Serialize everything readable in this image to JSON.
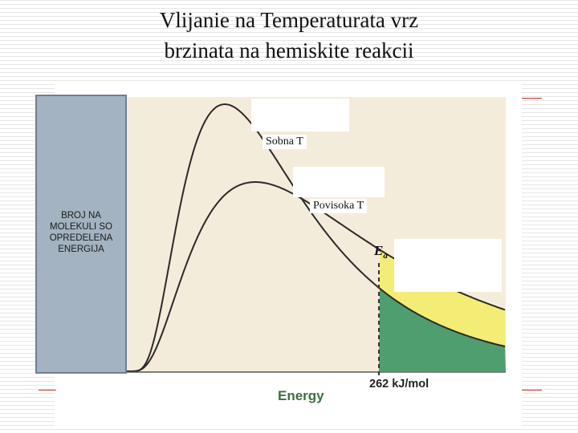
{
  "title": {
    "line1": "Vlijanie na Temperaturata vrz",
    "line2": "brzinata na hemiskite reakcii"
  },
  "chart_data": {
    "type": "line",
    "ylabel": "BROJ NA\nMOLEKULI SO\nOPREDELENA\nENERGIJA",
    "xlabel": "Energy",
    "series": [
      {
        "name": "Sobna T"
      },
      {
        "name": "Povisoka T"
      }
    ],
    "threshold": {
      "symbol": "E",
      "subscript": "a",
      "label": "262 kJ/mol"
    },
    "colors": {
      "plot_bg": "#f4ecda",
      "curve": "#2a2a2a",
      "fill_room": "#4f9e70",
      "fill_high": "#f3ed76",
      "axis_text": "#3c6f3f",
      "dashed": "#333333"
    },
    "grid": false
  }
}
